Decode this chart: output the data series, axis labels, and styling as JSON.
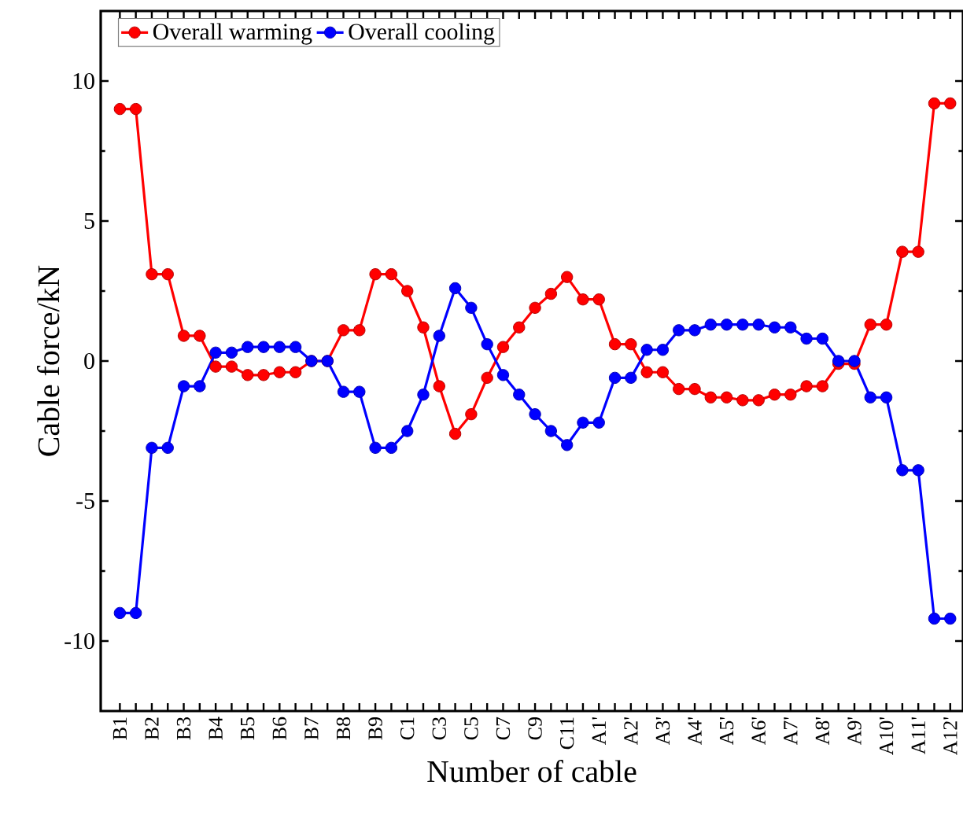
{
  "chart_data": {
    "type": "line",
    "xlabel": "Number of cable",
    "ylabel": "Cable force/kN",
    "categories": [
      "B1",
      null,
      "B2",
      null,
      "B3",
      null,
      "B4",
      null,
      "B5",
      null,
      "B6",
      null,
      "B7",
      null,
      "B8",
      null,
      "B9",
      null,
      "C1",
      null,
      "C3",
      null,
      "C5",
      null,
      "C7",
      null,
      "C9",
      null,
      "C11",
      null,
      "A1'",
      null,
      "A2'",
      null,
      "A3'",
      null,
      "A4'",
      null,
      "A5'",
      null,
      "A6'",
      null,
      "A7'",
      null,
      "A8'",
      null,
      "A9'",
      null,
      "A10'",
      null,
      "A11'",
      null,
      "A12'"
    ],
    "series": [
      {
        "name": "Overall warming",
        "color": "#ff0000",
        "values": [
          9.0,
          9.0,
          3.1,
          3.1,
          0.9,
          0.9,
          -0.2,
          -0.2,
          -0.5,
          -0.5,
          -0.4,
          -0.4,
          0.0,
          0.0,
          1.1,
          1.1,
          3.1,
          3.1,
          2.5,
          1.2,
          -0.9,
          -2.6,
          -1.9,
          -0.6,
          0.5,
          1.2,
          1.9,
          2.4,
          3.0,
          2.2,
          2.2,
          0.6,
          0.6,
          -0.4,
          -0.4,
          -1.0,
          -1.0,
          -1.3,
          -1.3,
          -1.4,
          -1.4,
          -1.2,
          -1.2,
          -0.9,
          -0.9,
          -0.1,
          -0.1,
          1.3,
          1.3,
          3.9,
          3.9,
          9.2,
          9.2
        ]
      },
      {
        "name": "Overall cooling",
        "color": "#0000ff",
        "values": [
          -9.0,
          -9.0,
          -3.1,
          -3.1,
          -0.9,
          -0.9,
          0.3,
          0.3,
          0.5,
          0.5,
          0.5,
          0.5,
          0.0,
          0.0,
          -1.1,
          -1.1,
          -3.1,
          -3.1,
          -2.5,
          -1.2,
          0.9,
          2.6,
          1.9,
          0.6,
          -0.5,
          -1.2,
          -1.9,
          -2.5,
          -3.0,
          -2.2,
          -2.2,
          -0.6,
          -0.6,
          0.4,
          0.4,
          1.1,
          1.1,
          1.3,
          1.3,
          1.3,
          1.3,
          1.2,
          1.2,
          0.8,
          0.8,
          0.0,
          0.0,
          -1.3,
          -1.3,
          -3.9,
          -3.9,
          -9.2,
          -9.2
        ]
      }
    ],
    "ylim": [
      -12.5,
      12.5
    ],
    "yticks": [
      -10,
      -5,
      0,
      5,
      10
    ],
    "legend": "top left",
    "marker": "circle",
    "line_style": "solid",
    "grid": false
  }
}
